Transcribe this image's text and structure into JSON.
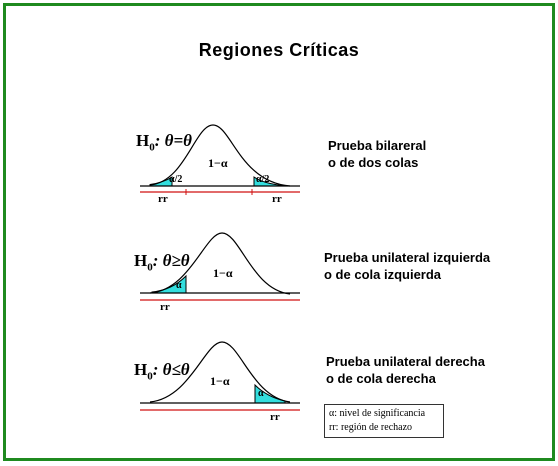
{
  "title": "Regiones Críticas",
  "panels": [
    {
      "hypothesis_prefix": "H",
      "hypothesis_sub": "0",
      "hypothesis_rest": ": θ=θ",
      "test_line1": "Prueba bilareral",
      "test_line2": "o de dos colas",
      "center_label": "1−α",
      "tail_labels": [
        "α/2",
        "α/2"
      ],
      "rr_labels": [
        "rr",
        "rr"
      ]
    },
    {
      "hypothesis_prefix": "H",
      "hypothesis_sub": "0",
      "hypothesis_rest": ": θ≥θ",
      "test_line1": "Prueba unilateral izquierda",
      "test_line2": "o de cola izquierda",
      "center_label": "1−α",
      "tail_labels": [
        "α"
      ],
      "rr_labels": [
        "rr"
      ]
    },
    {
      "hypothesis_prefix": "H",
      "hypothesis_sub": "0",
      "hypothesis_rest": ": θ≤θ",
      "test_line1": "Prueba unilateral derecha",
      "test_line2": "o de cola derecha",
      "center_label": "1−α",
      "tail_labels": [
        "α"
      ],
      "rr_labels": [
        "rr"
      ]
    }
  ],
  "legend": {
    "line1": "α: nivel de significancia",
    "line2": "rr: región de rechazo"
  },
  "colors": {
    "frame": "#1f8a1f",
    "tail_fill": "#33dede",
    "rejection_line": "#d01010",
    "curve": "#000000"
  }
}
